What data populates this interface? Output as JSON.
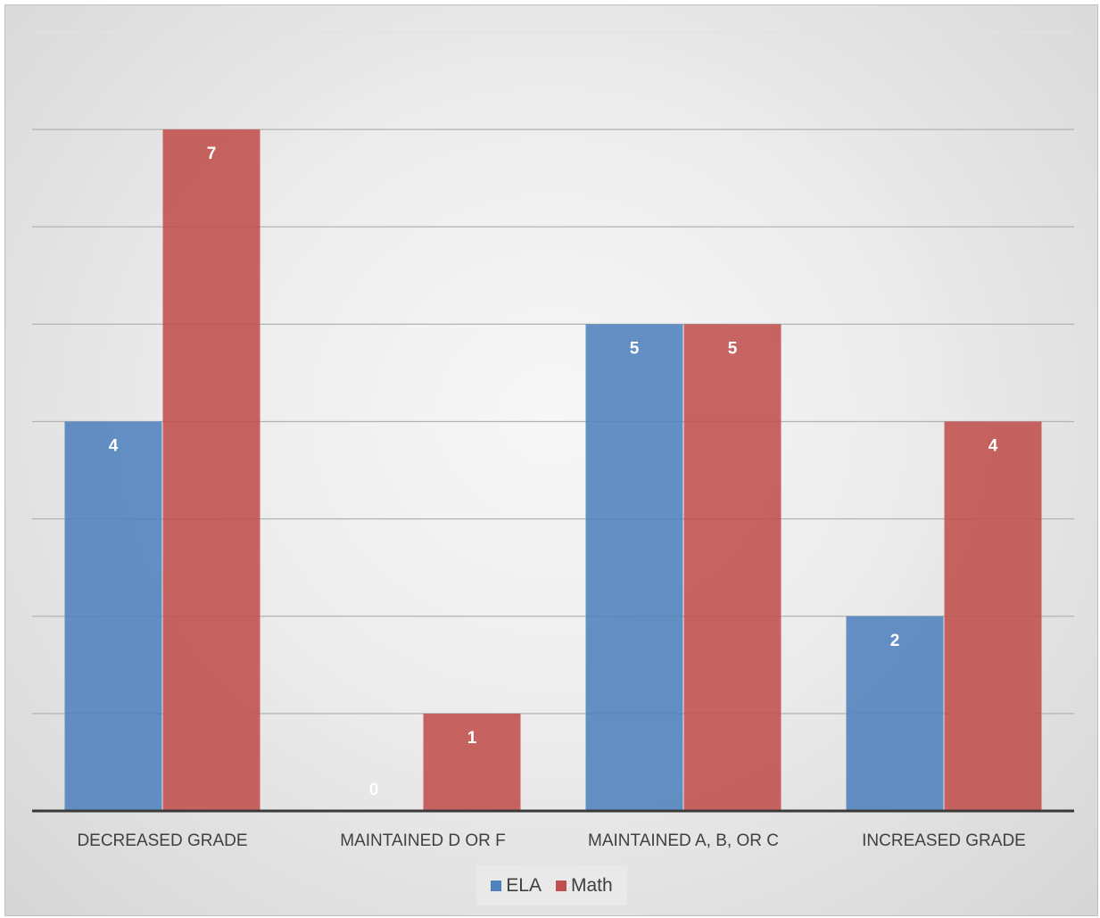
{
  "chart_data": {
    "type": "bar",
    "title": "",
    "xlabel": "",
    "ylabel": "",
    "categories": [
      "DECREASED GRADE",
      "MAINTAINED D OR F",
      "MAINTAINED A, B, OR C",
      "INCREASED GRADE"
    ],
    "series": [
      {
        "name": "ELA",
        "values": [
          4,
          0,
          5,
          2
        ],
        "color": "#4f81bd"
      },
      {
        "name": "Math",
        "values": [
          7,
          1,
          5,
          4
        ],
        "color": "#c0504d"
      }
    ],
    "ylim": [
      0,
      8
    ],
    "gridlines": true,
    "y_tick_labels_shown": false,
    "data_labels": true,
    "legend_position": "bottom"
  }
}
